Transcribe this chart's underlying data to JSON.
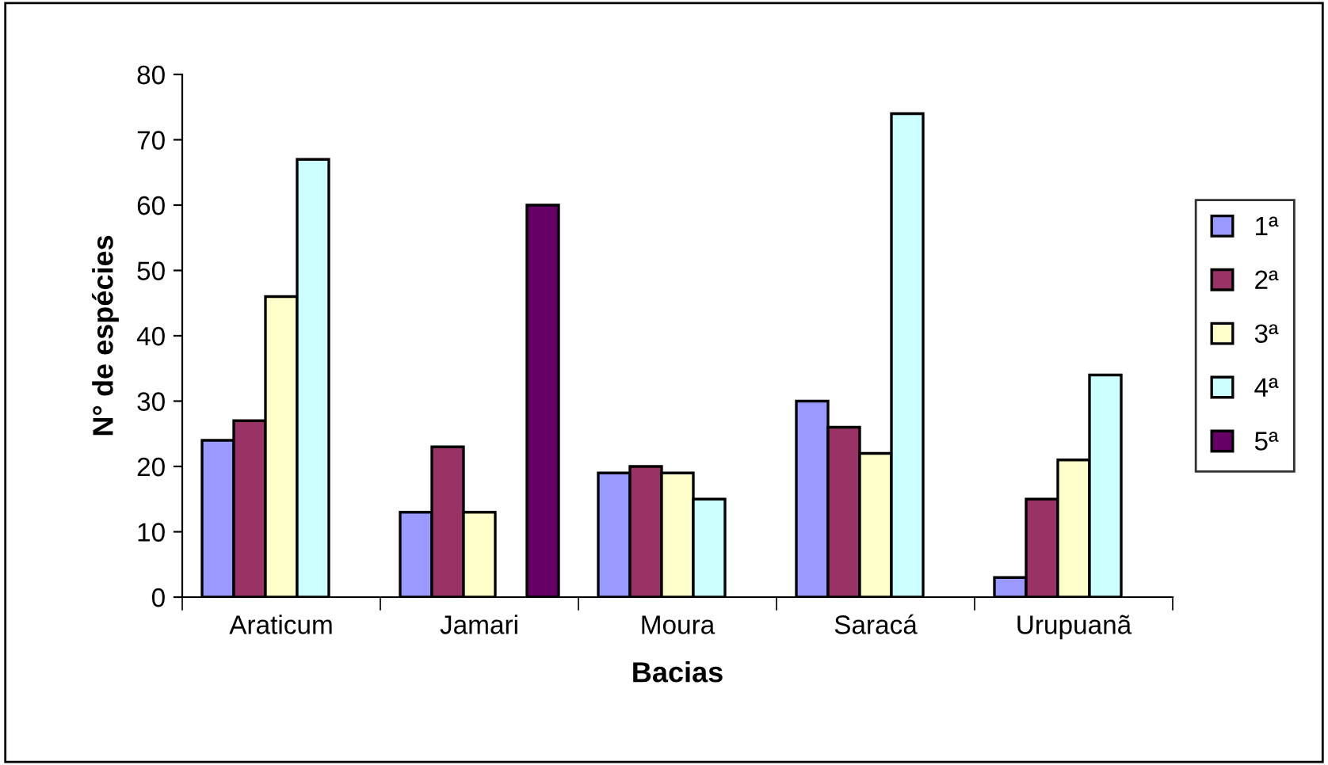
{
  "chart_data": {
    "type": "bar",
    "xlabel": "Bacias",
    "ylabel": "N° de espécies",
    "categories": [
      "Araticum",
      "Jamari",
      "Moura",
      "Saracá",
      "Urupuanã"
    ],
    "series": [
      {
        "name": "1ª",
        "color": "#9999ff",
        "values": [
          24,
          13,
          19,
          30,
          3
        ]
      },
      {
        "name": "2ª",
        "color": "#993366",
        "values": [
          27,
          23,
          20,
          26,
          15
        ]
      },
      {
        "name": "3ª",
        "color": "#ffffcc",
        "values": [
          46,
          13,
          19,
          22,
          21
        ]
      },
      {
        "name": "4ª",
        "color": "#ccffff",
        "values": [
          67,
          null,
          15,
          74,
          34
        ]
      },
      {
        "name": "5ª",
        "color": "#660066",
        "values": [
          null,
          60,
          null,
          null,
          null
        ]
      }
    ],
    "ylim": [
      0,
      80
    ],
    "yticks": [
      0,
      10,
      20,
      30,
      40,
      50,
      60,
      70,
      80
    ],
    "grid": false,
    "legend": "right"
  }
}
